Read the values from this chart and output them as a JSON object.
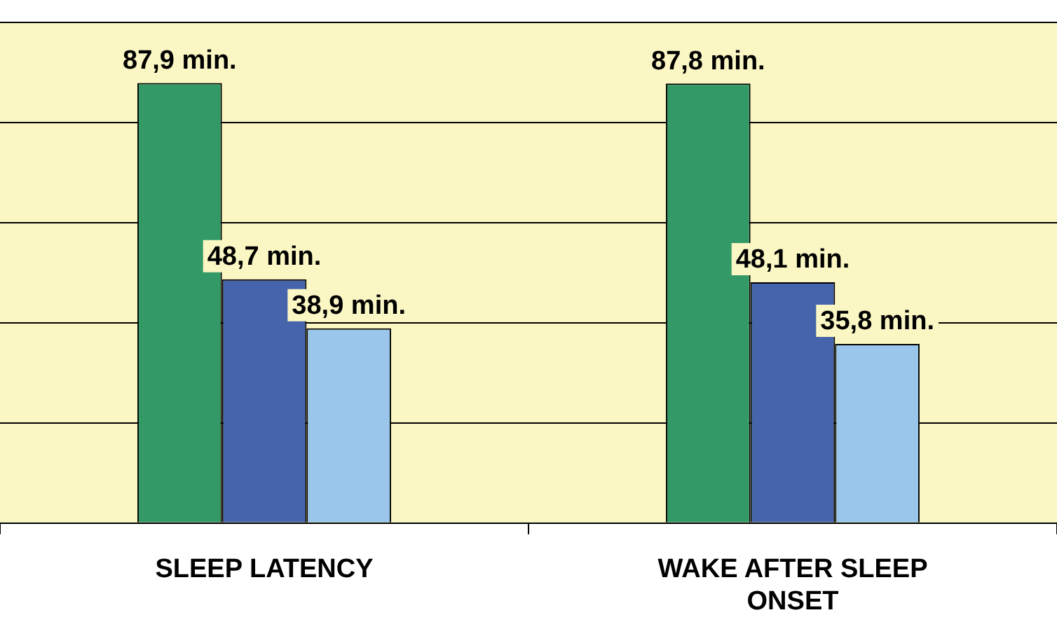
{
  "chart_data": {
    "type": "bar",
    "categories": [
      "SLEEP LATENCY",
      "WAKE AFTER SLEEP ONSET"
    ],
    "series": [
      {
        "color": "#339966",
        "values": [
          87.9,
          87.8
        ],
        "value_labels": [
          "87,9 min.",
          "87,8 min."
        ]
      },
      {
        "color": "#4664ac",
        "values": [
          48.7,
          48.1
        ],
        "value_labels": [
          "48,7 min.",
          "48,1 min."
        ]
      },
      {
        "color": "#99c6ea",
        "values": [
          38.9,
          35.8
        ],
        "value_labels": [
          "38,9 min.",
          "35,8 min."
        ]
      }
    ],
    "ylim": [
      0,
      100
    ],
    "yticks": [
      {
        "value": 0,
        "label": null
      },
      {
        "value": 20,
        "label": null
      },
      {
        "value": 40,
        "label": null
      },
      {
        "value": 60,
        "label": null
      },
      {
        "value": 80,
        "label": null
      },
      {
        "value": 100,
        "label": null
      }
    ],
    "grid": "y",
    "legend": false,
    "tick_labels": "x"
  }
}
